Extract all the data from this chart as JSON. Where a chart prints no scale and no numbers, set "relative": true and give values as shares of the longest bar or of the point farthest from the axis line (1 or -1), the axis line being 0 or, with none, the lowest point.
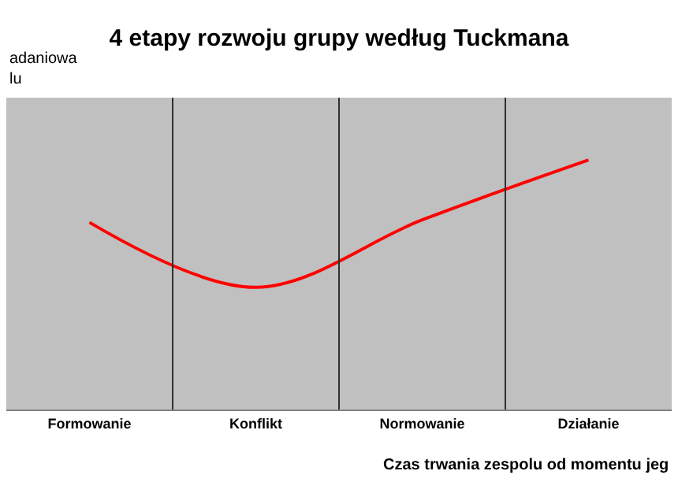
{
  "chart_data": {
    "type": "line",
    "title": "4 etapy rozwoju grupy według Tuckmana",
    "ylabel": "adaniowa\nlu",
    "xlabel": "Czas trwania zespolu od momentu jeg",
    "categories": [
      "Formowanie",
      "Konflikt",
      "Normowanie",
      "Działanie"
    ],
    "series": [
      {
        "color": "#ff0000",
        "values": [
          0.75,
          0.49,
          0.76,
          1
        ]
      }
    ],
    "relative": true,
    "grid": "x",
    "marker": "none",
    "line_style": "solid",
    "legend": false
  }
}
